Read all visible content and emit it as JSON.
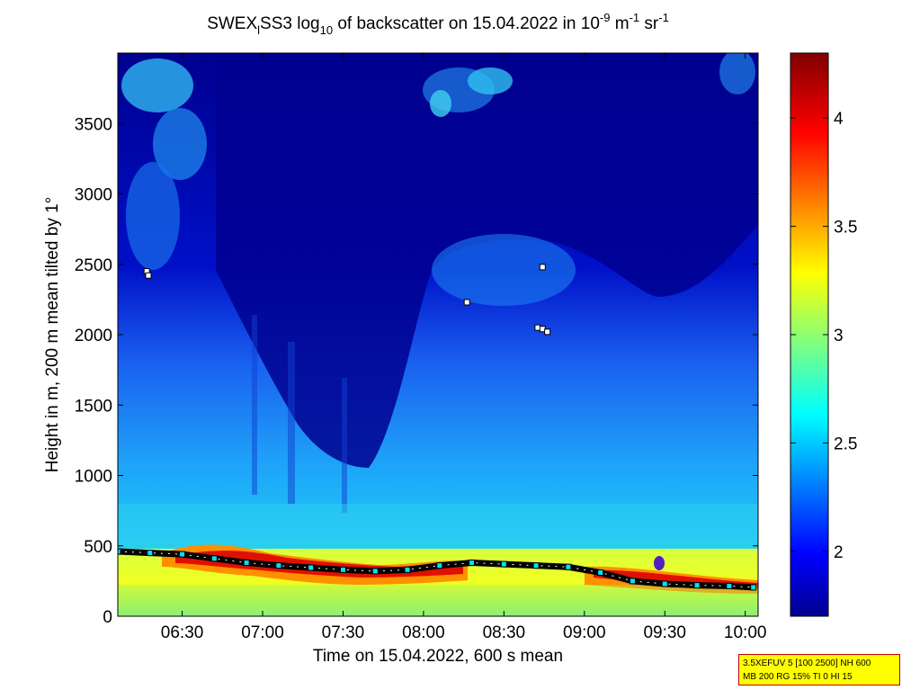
{
  "chart_data": {
    "type": "heatmap",
    "title_parts": {
      "a": "SWEX",
      "a_sub": "l",
      "b": "SS3 log",
      "b_sub": "10",
      "c": " of backscatter on 15.04.2022 in 10",
      "c_sup": "-9",
      "d": " m",
      "d_sup": "-1",
      "e": " sr",
      "e_sup": "-1"
    },
    "xlabel": "Time on 15.04.2022, 600 s mean",
    "ylabel": "Height in m, 200 m mean tilted by 1°",
    "x_range_hours": [
      6.1,
      10.08
    ],
    "x_ticks": [
      {
        "value": 6.5,
        "label": "06:30"
      },
      {
        "value": 7.0,
        "label": "07:00"
      },
      {
        "value": 7.5,
        "label": "07:30"
      },
      {
        "value": 8.0,
        "label": "08:00"
      },
      {
        "value": 8.5,
        "label": "08:30"
      },
      {
        "value": 9.0,
        "label": "09:00"
      },
      {
        "value": 9.5,
        "label": "09:30"
      },
      {
        "value": 10.0,
        "label": "10:00"
      }
    ],
    "ylim": [
      0,
      4000
    ],
    "y_ticks": [
      0,
      500,
      1000,
      1500,
      2000,
      2500,
      3000,
      3500
    ],
    "colorbar": {
      "range": [
        1.7,
        4.3
      ],
      "ticks": [
        "2",
        "2.5",
        "3",
        "3.5",
        "4"
      ],
      "tick_values": [
        2,
        2.5,
        3,
        3.5,
        4
      ],
      "colormap": "jet"
    },
    "boundary_layer_height": {
      "x": [
        6.1,
        6.3,
        6.5,
        6.7,
        6.9,
        7.1,
        7.3,
        7.5,
        7.7,
        7.9,
        8.1,
        8.3,
        8.5,
        8.7,
        8.9,
        9.1,
        9.3,
        9.5,
        9.7,
        9.9,
        10.05
      ],
      "y": [
        460,
        450,
        440,
        410,
        380,
        360,
        345,
        330,
        320,
        330,
        360,
        380,
        370,
        360,
        350,
        310,
        250,
        230,
        220,
        215,
        205
      ]
    },
    "upper_markers": [
      {
        "x": 6.28,
        "y": 2450
      },
      {
        "x": 6.29,
        "y": 2420
      },
      {
        "x": 8.27,
        "y": 2230
      },
      {
        "x": 8.74,
        "y": 2480
      },
      {
        "x": 8.71,
        "y": 2050
      },
      {
        "x": 8.74,
        "y": 2040
      },
      {
        "x": 8.77,
        "y": 2020
      }
    ]
  },
  "info_box": {
    "line1": "3.5XEFUV 5 [100 2500] NH 600",
    "line2": "MB 200 RG 15% TI 0 HI 15"
  }
}
